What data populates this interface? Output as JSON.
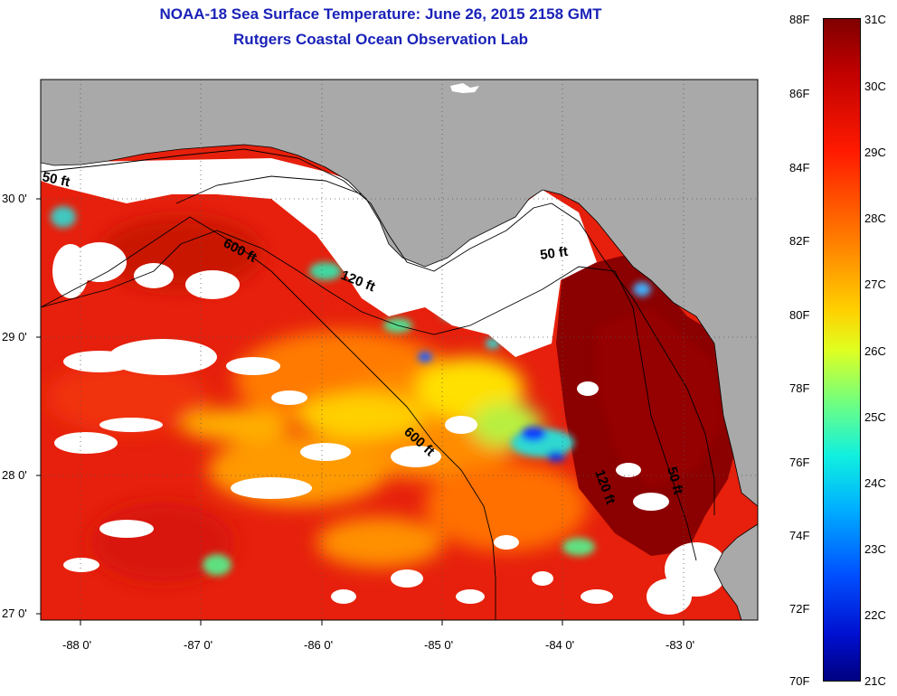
{
  "title_line1": "NOAA-18 Sea Surface Temperature:  June 26, 2015 2158 GMT",
  "title_line2": "Rutgers Coastal Ocean Observation Lab",
  "y_ticks": [
    "30 0'",
    "29 0'",
    "28 0'",
    "27 0'"
  ],
  "x_ticks": [
    "-88 0'",
    "-87 0'",
    "-86 0'",
    "-85 0'",
    "-84 0'",
    "-83 0'"
  ],
  "contour_labels": [
    "50 ft",
    "600 ft",
    "120 ft",
    "50 ft",
    "600 ft",
    "120 ft",
    "50 ft"
  ],
  "colorbar": {
    "fahrenheit": [
      "88F",
      "86F",
      "84F",
      "82F",
      "80F",
      "78F",
      "76F",
      "74F",
      "72F",
      "70F"
    ],
    "celsius": [
      "31C",
      "30C",
      "29C",
      "28C",
      "27C",
      "26C",
      "25C",
      "24C",
      "23C",
      "22C",
      "21C"
    ]
  },
  "colors": {
    "title": "#1a22b8",
    "land": "#a9a9a9",
    "cloud": "#ffffff",
    "warm_dark": "#8b0000",
    "warm": "#e01a0a",
    "orange": "#ff6a00",
    "yellow": "#ffe800",
    "cyan": "#2fd8d0",
    "blue": "#1040ff"
  }
}
